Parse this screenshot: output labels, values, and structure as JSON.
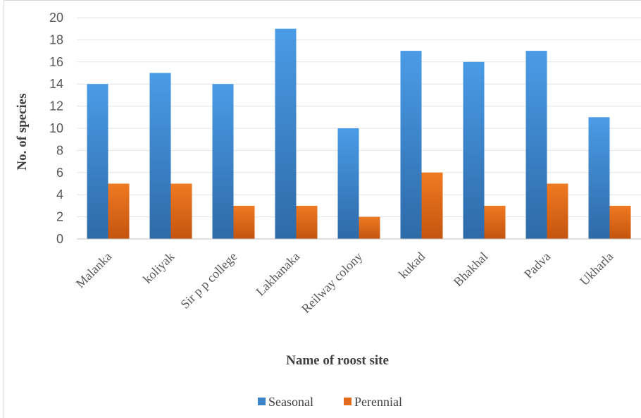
{
  "chart_data": {
    "type": "bar",
    "categories": [
      "Malanka",
      "koliyak",
      "Sir p p college",
      "Lakhanaka",
      "Reilway colony",
      "kukad",
      "Bhakhal",
      "Padva",
      "Ukharla"
    ],
    "series": [
      {
        "name": "Seasonal",
        "values": [
          14,
          15,
          14,
          19,
          10,
          17,
          16,
          17,
          11
        ],
        "color": "#3c83c9"
      },
      {
        "name": "Perennial",
        "values": [
          5,
          5,
          3,
          3,
          2,
          6,
          3,
          5,
          3
        ],
        "color": "#e46a1c"
      }
    ],
    "xlabel": "Name of roost site",
    "ylabel": "No. of species",
    "ylim": [
      0,
      20
    ],
    "yticks": [
      0,
      2,
      4,
      6,
      8,
      10,
      12,
      14,
      16,
      18,
      20
    ],
    "grid": true,
    "legend_position": "bottom"
  }
}
